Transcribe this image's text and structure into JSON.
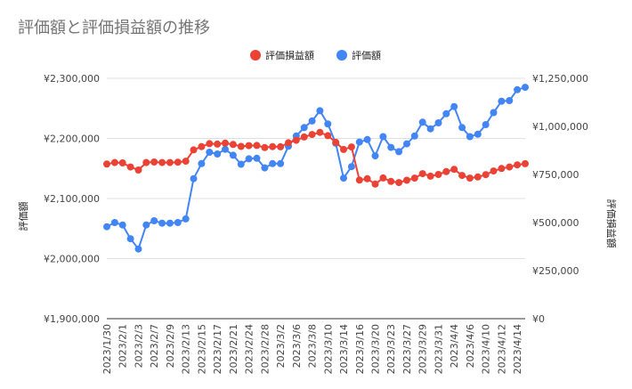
{
  "chart_data": {
    "type": "line",
    "title": "評価額と評価損益額の推移",
    "legend_position": "top",
    "grid": true,
    "colors": {
      "series_a": "#ea4335",
      "series_b": "#4285f4",
      "grid": "#e0e0e0",
      "baseline": "#333333"
    },
    "y_left": {
      "label": "評価額",
      "ylim": [
        1900000,
        2300000
      ],
      "ticks": [
        1900000,
        2000000,
        2100000,
        2200000,
        2300000
      ],
      "tick_labels": [
        "¥1,900,000",
        "¥2,000,000",
        "¥2,100,000",
        "¥2,200,000",
        "¥2,300,000"
      ]
    },
    "y_right": {
      "label": "評価損益額",
      "ylim": [
        0,
        1250000
      ],
      "ticks": [
        0,
        250000,
        500000,
        750000,
        1000000,
        1250000
      ],
      "tick_labels": [
        "¥0",
        "¥250,000",
        "¥500,000",
        "¥750,000",
        "¥1,000,000",
        "¥1,250,000"
      ]
    },
    "x": [
      "2023/1/30",
      "2023/1/31",
      "2023/2/1",
      "2023/2/2",
      "2023/2/3",
      "2023/2/6",
      "2023/2/7",
      "2023/2/8",
      "2023/2/9",
      "2023/2/10",
      "2023/2/13",
      "2023/2/14",
      "2023/2/15",
      "2023/2/16",
      "2023/2/17",
      "2023/2/20",
      "2023/2/21",
      "2023/2/22",
      "2023/2/24",
      "2023/2/27",
      "2023/2/28",
      "2023/3/1",
      "2023/3/2",
      "2023/3/3",
      "2023/3/6",
      "2023/3/7",
      "2023/3/8",
      "2023/3/9",
      "2023/3/10",
      "2023/3/13",
      "2023/3/14",
      "2023/3/15",
      "2023/3/16",
      "2023/3/17",
      "2023/3/20",
      "2023/3/22",
      "2023/3/23",
      "2023/3/24",
      "2023/3/27",
      "2023/3/28",
      "2023/3/29",
      "2023/3/30",
      "2023/3/31",
      "2023/4/3",
      "2023/4/4",
      "2023/4/5",
      "2023/4/6",
      "2023/4/7",
      "2023/4/10",
      "2023/4/11",
      "2023/4/12",
      "2023/4/13",
      "2023/4/14",
      "2023/4/17"
    ],
    "x_tick_labels": [
      "2023/1/30",
      "2023/2/1",
      "2023/2/3",
      "2023/2/7",
      "2023/2/9",
      "2023/2/13",
      "2023/2/15",
      "2023/2/17",
      "2023/2/21",
      "2023/2/24",
      "2023/2/28",
      "2023/3/2",
      "2023/3/6",
      "2023/3/8",
      "2023/3/10",
      "2023/3/14",
      "2023/3/16",
      "2023/3/20",
      "2023/3/23",
      "2023/3/27",
      "2023/3/29",
      "2023/3/31",
      "2023/4/4",
      "2023/4/6",
      "2023/4/10",
      "2023/4/12",
      "2023/4/14"
    ],
    "series": [
      {
        "name": "評価損益額",
        "axis": "right",
        "color": "#ea4335",
        "values": [
          804000,
          812000,
          810000,
          789000,
          773000,
          812000,
          815000,
          812000,
          812000,
          814000,
          819000,
          878000,
          895000,
          910000,
          908000,
          913000,
          906000,
          896000,
          900000,
          901000,
          890000,
          895000,
          894000,
          915000,
          928000,
          945000,
          958000,
          969000,
          952000,
          917000,
          880000,
          893000,
          721000,
          728000,
          700000,
          732000,
          714000,
          708000,
          720000,
          731000,
          754000,
          741000,
          750000,
          765000,
          777000,
          745000,
          731000,
          737000,
          749000,
          768000,
          781000,
          789000,
          800000,
          806000
        ]
      },
      {
        "name": "評価額",
        "axis": "left",
        "color": "#4285f4",
        "values": [
          2053000,
          2060000,
          2056000,
          2033000,
          2016000,
          2056000,
          2063000,
          2059000,
          2059000,
          2060000,
          2066000,
          2133000,
          2158000,
          2177000,
          2174000,
          2182000,
          2172000,
          2157000,
          2166000,
          2167000,
          2151000,
          2158000,
          2158000,
          2187000,
          2204000,
          2218000,
          2229000,
          2246000,
          2224000,
          2192000,
          2134000,
          2153000,
          2194000,
          2198000,
          2171000,
          2203000,
          2185000,
          2178000,
          2191000,
          2204000,
          2227000,
          2216000,
          2226000,
          2241000,
          2253000,
          2218000,
          2203000,
          2207000,
          2223000,
          2243000,
          2262000,
          2263000,
          2281000,
          2285000
        ]
      }
    ]
  }
}
